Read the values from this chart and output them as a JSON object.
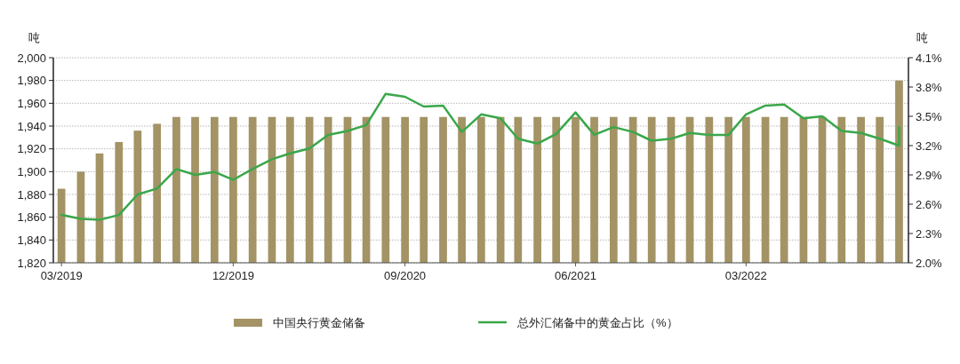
{
  "chart_data": {
    "type": "bar",
    "x": [
      "2019-03",
      "2019-04",
      "2019-05",
      "2019-06",
      "2019-07",
      "2019-08",
      "2019-09",
      "2019-10",
      "2019-11",
      "2019-12",
      "2020-01",
      "2020-02",
      "2020-03",
      "2020-04",
      "2020-05",
      "2020-06",
      "2020-07",
      "2020-08",
      "2020-09",
      "2020-10",
      "2020-11",
      "2020-12",
      "2021-01",
      "2021-02",
      "2021-03",
      "2021-04",
      "2021-05",
      "2021-06",
      "2021-07",
      "2021-08",
      "2021-09",
      "2021-10",
      "2021-11",
      "2021-12",
      "2022-01",
      "2022-02",
      "2022-03",
      "2022-04",
      "2022-05",
      "2022-06",
      "2022-07",
      "2022-08",
      "2022-09",
      "2022-10",
      "2022-11"
    ],
    "series": [
      {
        "name": "中国央行黄金储备",
        "color": "#a39365",
        "values": [
          1885,
          1900,
          1916,
          1926,
          1936,
          1942,
          1948,
          1948,
          1948,
          1948,
          1948,
          1948,
          1948,
          1948,
          1948,
          1948,
          1948,
          1948,
          1948,
          1948,
          1948,
          1948,
          1948,
          1948,
          1948,
          1948,
          1948,
          1948,
          1948,
          1948,
          1948,
          1948,
          1948,
          1948,
          1948,
          1948,
          1948,
          1948,
          1948,
          1948,
          1948,
          1948,
          1948,
          1948,
          1980
        ]
      },
      {
        "name": "总外汇储备中的黄金占比（%）",
        "type": "line",
        "axis": "y2",
        "color": "#3aa74a",
        "x": [
          "2019-03",
          "2019-04",
          "2019-05",
          "2019-06",
          "2019-07",
          "2019-08",
          "2019-09",
          "2019-10",
          "2019-11",
          "2019-12",
          "2020-01",
          "2020-02",
          "2020-03",
          "2020-04",
          "2020-05",
          "2020-06",
          "2020-07",
          "2020-08",
          "2020-09",
          "2020-10",
          "2020-11",
          "2020-12",
          "2021-01",
          "2021-02",
          "2021-03",
          "2021-04",
          "2021-05",
          "2021-06",
          "2021-07",
          "2021-08",
          "2021-09",
          "2021-10",
          "2021-11",
          "2021-12",
          "2022-01",
          "2022-02",
          "2022-03",
          "2022-04",
          "2022-05",
          "2022-06",
          "2022-07",
          "2022-08",
          "2022-09",
          "2022-10",
          "2022-11",
          "2022-11"
        ],
        "values": [
          2.49,
          2.45,
          2.44,
          2.49,
          2.7,
          2.76,
          2.96,
          2.9,
          2.93,
          2.85,
          2.96,
          3.06,
          3.12,
          3.17,
          3.31,
          3.35,
          3.41,
          3.73,
          3.7,
          3.6,
          3.61,
          3.34,
          3.52,
          3.48,
          3.27,
          3.22,
          3.32,
          3.54,
          3.31,
          3.39,
          3.34,
          3.25,
          3.27,
          3.33,
          3.31,
          3.31,
          3.52,
          3.61,
          3.62,
          3.48,
          3.5,
          3.35,
          3.33,
          3.27,
          3.2,
          3.39
        ]
      }
    ],
    "xlim": [
      "2019-02-16",
      "2022-11-16"
    ],
    "xticks": [
      {
        "value": "2019-03",
        "label": "03/2019"
      },
      {
        "value": "2019-12",
        "label": "12/2019"
      },
      {
        "value": "2020-09",
        "label": "09/2020"
      },
      {
        "value": "2021-06",
        "label": "06/2021"
      },
      {
        "value": "2022-03",
        "label": "03/2022"
      }
    ],
    "ylim": [
      1820,
      2000
    ],
    "yticks": [
      {
        "value": 1820,
        "label": "1,820"
      },
      {
        "value": 1840,
        "label": "1,840"
      },
      {
        "value": 1860,
        "label": "1,860"
      },
      {
        "value": 1880,
        "label": "1,880"
      },
      {
        "value": 1900,
        "label": "1,900"
      },
      {
        "value": 1920,
        "label": "1,920"
      },
      {
        "value": 1940,
        "label": "1,940"
      },
      {
        "value": 1960,
        "label": "1,960"
      },
      {
        "value": 1980,
        "label": "1,980"
      },
      {
        "value": 2000,
        "label": "2,000"
      }
    ],
    "y2lim": [
      2.0,
      4.1
    ],
    "y2ticks": [
      {
        "value": 2.0,
        "label": "2.0%"
      },
      {
        "value": 2.3,
        "label": "2.3%"
      },
      {
        "value": 2.6,
        "label": "2.6%"
      },
      {
        "value": 2.9,
        "label": "2.9%"
      },
      {
        "value": 3.2,
        "label": "3.2%"
      },
      {
        "value": 3.5,
        "label": "3.5%"
      },
      {
        "value": 3.8,
        "label": "3.8%"
      },
      {
        "value": 4.1,
        "label": "4.1%"
      }
    ],
    "ylabel": "吨",
    "y2label": "吨",
    "grid": "y",
    "legend": "bottom"
  }
}
